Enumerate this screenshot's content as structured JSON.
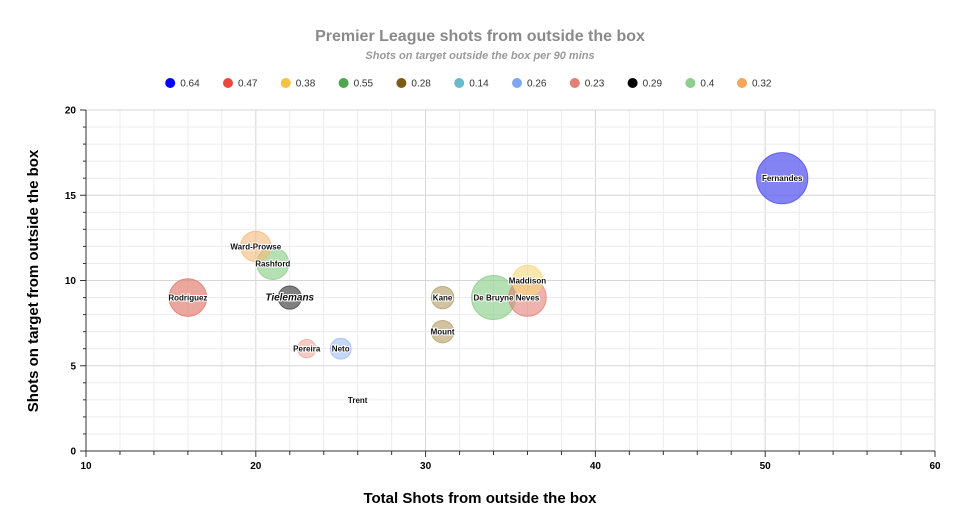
{
  "chart_data": {
    "type": "scatter",
    "title": "Premier League shots from outside the box",
    "subtitle": "Shots on target outside the box per 90 mins",
    "xlabel": "Total Shots from outside the box",
    "ylabel": "Shots on target from outside the box",
    "xlim": [
      10,
      60
    ],
    "ylim": [
      0,
      20
    ],
    "x_ticks": [
      "10",
      "20",
      "30",
      "40",
      "50",
      "60"
    ],
    "y_ticks": [
      "0",
      "5",
      "10",
      "15",
      "20"
    ],
    "grid": true,
    "legend_position": "top",
    "legend": [
      {
        "label": "0.64",
        "color": "#0000ff"
      },
      {
        "label": "0.47",
        "color": "#e8483d"
      },
      {
        "label": "0.38",
        "color": "#f5c342"
      },
      {
        "label": "0.55",
        "color": "#4ca64c"
      },
      {
        "label": "0.28",
        "color": "#7a5c14"
      },
      {
        "label": "0.14",
        "color": "#66bbcc"
      },
      {
        "label": "0.26",
        "color": "#7ea6f0"
      },
      {
        "label": "0.23",
        "color": "#e38075"
      },
      {
        "label": "0.29",
        "color": "#000000"
      },
      {
        "label": "0.4",
        "color": "#8ccf8c"
      },
      {
        "label": "0.32",
        "color": "#f5a55a"
      }
    ],
    "points": [
      {
        "label": "Fernandes",
        "x": 51,
        "y": 16,
        "size": 0.64,
        "color": "#5a5af0",
        "opacity": 0.75
      },
      {
        "label": "Rodriguez",
        "x": 16,
        "y": 9,
        "size": 0.47,
        "color": "#e38075",
        "opacity": 0.7
      },
      {
        "label": "Ward-Prowse",
        "x": 20,
        "y": 12,
        "size": 0.38,
        "color": "#f5b97a",
        "opacity": 0.6
      },
      {
        "label": "Rashford",
        "x": 21,
        "y": 11,
        "size": 0.4,
        "color": "#8ccf8c",
        "opacity": 0.65
      },
      {
        "label": "Tielemans",
        "x": 22,
        "y": 9,
        "size": 0.29,
        "color": "#555555",
        "opacity": 0.75,
        "italic": true
      },
      {
        "label": "Pereira",
        "x": 23,
        "y": 6,
        "size": 0.23,
        "color": "#f0a8a0",
        "opacity": 0.6
      },
      {
        "label": "Neto",
        "x": 25,
        "y": 6,
        "size": 0.26,
        "color": "#9bbcf2",
        "opacity": 0.6
      },
      {
        "label": "Trent",
        "x": 26,
        "y": 3,
        "size": 0.14,
        "color": "#66bbcc",
        "opacity": 0.0
      },
      {
        "label": "Kane",
        "x": 31,
        "y": 9,
        "size": 0.28,
        "color": "#b8a370",
        "opacity": 0.65
      },
      {
        "label": "Mount",
        "x": 31,
        "y": 7,
        "size": 0.28,
        "color": "#b8a370",
        "opacity": 0.65
      },
      {
        "label": "De Bruyne",
        "x": 34,
        "y": 9,
        "size": 0.55,
        "color": "#8ccf8c",
        "opacity": 0.65
      },
      {
        "label": "Maddison",
        "x": 36,
        "y": 10,
        "size": 0.38,
        "color": "#f5d77a",
        "opacity": 0.6
      },
      {
        "label": "Neves",
        "x": 36,
        "y": 9,
        "size": 0.47,
        "color": "#e38075",
        "opacity": 0.6
      }
    ]
  }
}
